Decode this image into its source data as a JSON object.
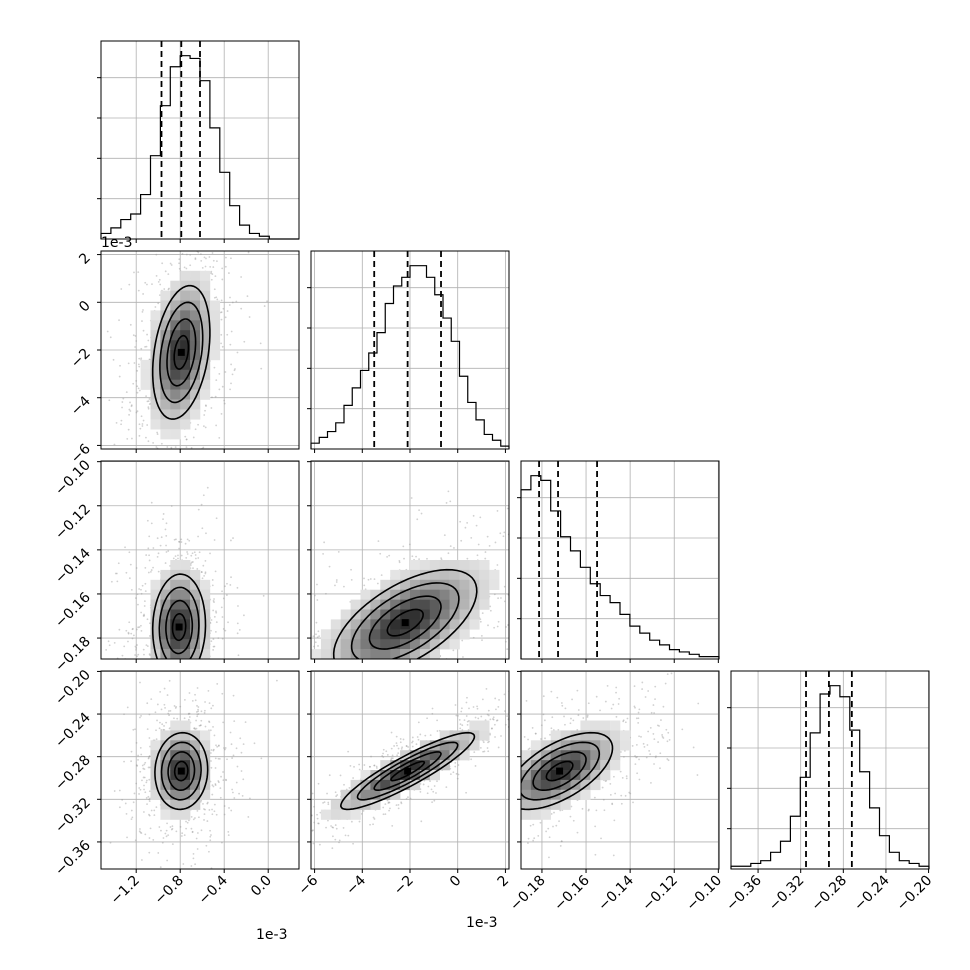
{
  "chart_data": {
    "type": "corner",
    "parameters": [
      {
        "index": 0,
        "range": [
          -0.00152,
          0.00028
        ],
        "offset_text": "1e-3",
        "scale": 0.001,
        "ticks": [
          -0.0012,
          -0.0008,
          -0.0004,
          0.0
        ],
        "tick_labels": [
          "−1.2",
          "−0.8",
          "−0.4",
          "0.0"
        ],
        "quantiles": [
          -0.00097,
          -0.00079,
          -0.00062
        ]
      },
      {
        "index": 1,
        "range": [
          -0.00615,
          0.00215
        ],
        "offset_text": "1e-3",
        "scale": 0.001,
        "ticks": [
          -0.006,
          -0.004,
          -0.002,
          0.0,
          0.002
        ],
        "tick_labels": [
          "−6",
          "−4",
          "−2",
          "0",
          "2"
        ],
        "quantiles": [
          -0.0035,
          -0.0021,
          -0.0007
        ]
      },
      {
        "index": 2,
        "range": [
          -0.1895,
          -0.0997
        ],
        "ticks": [
          -0.18,
          -0.16,
          -0.14,
          -0.12,
          -0.1
        ],
        "tick_labels": [
          "−0.18",
          "−0.16",
          "−0.14",
          "−0.12",
          "−0.10"
        ],
        "quantiles": [
          -0.1813,
          -0.1727,
          -0.155
        ]
      },
      {
        "index": 3,
        "range": [
          -0.3854,
          -0.1996
        ],
        "ticks": [
          -0.36,
          -0.32,
          -0.28,
          -0.24,
          -0.2
        ],
        "tick_labels": [
          "−0.36",
          "−0.32",
          "−0.28",
          "−0.24",
          "−0.20"
        ],
        "quantiles": [
          -0.315,
          -0.2935,
          -0.272
        ]
      }
    ],
    "histograms": [
      {
        "param": 0,
        "counts": [
          2,
          4,
          7,
          9,
          16,
          30,
          48,
          62,
          66,
          65,
          57,
          40,
          24,
          12,
          5,
          2,
          1,
          0,
          0,
          0
        ]
      },
      {
        "param": 1,
        "counts": [
          2,
          4,
          6,
          9,
          15,
          21,
          27,
          33,
          40,
          50,
          56,
          59,
          63,
          63,
          59,
          53,
          45,
          37,
          25,
          16,
          10,
          5,
          3,
          1
        ]
      },
      {
        "param": 2,
        "counts": [
          72,
          78,
          76,
          63,
          52,
          46,
          39,
          32,
          27,
          24,
          19,
          14,
          11,
          8,
          6,
          4,
          3,
          2,
          1,
          1
        ]
      },
      {
        "param": 3,
        "counts": [
          1,
          1,
          2,
          3,
          6,
          10,
          19,
          33,
          49,
          63,
          66,
          62,
          50,
          35,
          22,
          12,
          6,
          3,
          2,
          1
        ]
      }
    ],
    "panels_2d": [
      {
        "x": 0,
        "y": 1,
        "mean": [
          -0.00079,
          -0.0021
        ],
        "std": [
          0.00013,
          0.0014
        ],
        "corr": 0.3
      },
      {
        "x": 0,
        "y": 2,
        "mean": [
          -0.00081,
          -0.175
        ],
        "std": [
          0.00012,
          0.012
        ],
        "corr": 0.05
      },
      {
        "x": 1,
        "y": 2,
        "mean": [
          -0.0022,
          -0.173
        ],
        "std": [
          0.0015,
          0.012
        ],
        "corr": 0.6
      },
      {
        "x": 0,
        "y": 3,
        "mean": [
          -0.00079,
          -0.2935
        ],
        "std": [
          0.00012,
          0.018
        ],
        "corr": 0.05
      },
      {
        "x": 1,
        "y": 3,
        "mean": [
          -0.0021,
          -0.2935
        ],
        "std": [
          0.0014,
          0.018
        ],
        "corr": 0.9
      },
      {
        "x": 2,
        "y": 3,
        "mean": [
          -0.172,
          -0.2935
        ],
        "std": [
          0.012,
          0.018
        ],
        "corr": 0.6
      }
    ],
    "grid": true,
    "colors": {
      "contour": "#000000",
      "points": "#9a9a9a",
      "quantile_line": "#000000",
      "grid": "#b0b0b0"
    }
  }
}
